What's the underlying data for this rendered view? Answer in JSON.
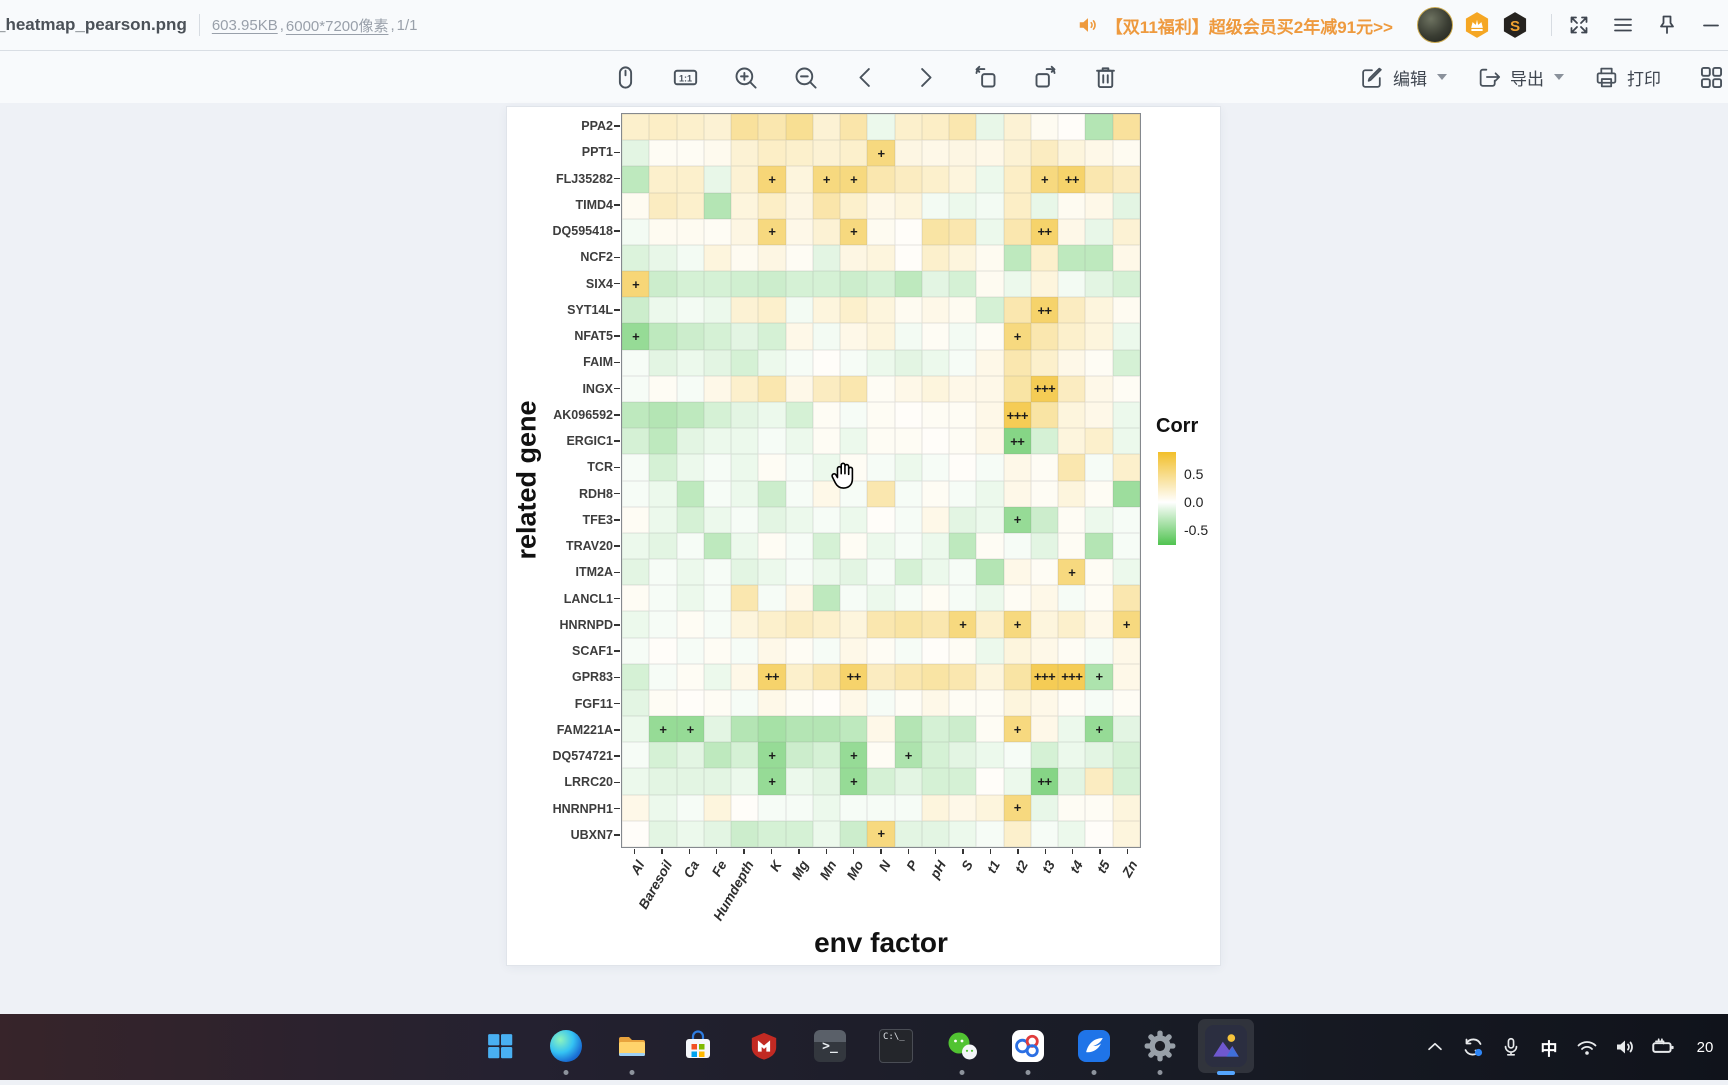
{
  "window": {
    "title": "_heatmap_pearson.png",
    "file_info": {
      "size": "603.95KB",
      "sep1": ",",
      "dimensions": "6000*7200像素",
      "sep2": ", ",
      "page": "1/1"
    },
    "promo": "【双11福利】超级会员买2年减91元>>",
    "svip_badge_label": "S",
    "header_icons": [
      "speaker-icon",
      "avatar",
      "vip-crown-badge",
      "svip-badge",
      "fullscreen-icon",
      "menu-icon",
      "pin-icon",
      "minimize-icon"
    ]
  },
  "toolbar": {
    "one_to_one": "1:1",
    "edit_label": "编辑",
    "export_label": "导出",
    "print_label": "打印",
    "icon_names": [
      "drag-tool",
      "actual-size",
      "zoom-in",
      "zoom-out",
      "previous-image",
      "next-image",
      "rotate-left",
      "rotate-right",
      "delete-image",
      "edit",
      "export",
      "print",
      "more-apps"
    ]
  },
  "chart_data": {
    "type": "heatmap",
    "xlabel": "env factor",
    "ylabel": "related gene",
    "legend_title": "Corr",
    "legend_ticks": [
      "0.5",
      "0.0",
      "-0.5"
    ],
    "colors": {
      "positive_max": "#f2bf2a",
      "negative_max": "#50c350",
      "mid": "#ffffff"
    },
    "value_scale_max": 0.75,
    "x_categories": [
      "Al",
      "Baresoil",
      "Ca",
      "Fe",
      "Humdepth",
      "K",
      "Mg",
      "Mn",
      "Mo",
      "N",
      "P",
      "pH",
      "S",
      "t1",
      "t2",
      "t3",
      "t4",
      "t5",
      "Zn"
    ],
    "y_categories": [
      "PPA2",
      "PPT1",
      "FLJ35282",
      "TIMD4",
      "DQ595418",
      "NCF2",
      "SIX4",
      "SYT14L",
      "NFAT5",
      "FAIM",
      "INGX",
      "AK096592",
      "ERGIC1",
      "TCR",
      "RDH8",
      "TFE3",
      "TRAV20",
      "ITM2A",
      "LANCL1",
      "HNRNPD",
      "SCAF1",
      "GPR83",
      "FGF11",
      "FAM221A",
      "DQ574721",
      "LRRC20",
      "HNRNPH1",
      "UBXN7"
    ],
    "values": [
      [
        0.18,
        0.2,
        0.18,
        0.15,
        0.35,
        0.28,
        0.38,
        0.15,
        0.3,
        -0.08,
        0.18,
        0.2,
        0.28,
        -0.1,
        0.15,
        0.05,
        0.02,
        -0.32,
        0.35
      ],
      [
        -0.12,
        0.04,
        0.04,
        0.06,
        0.15,
        0.2,
        0.18,
        0.15,
        0.18,
        0.45,
        0.1,
        0.08,
        0.1,
        0.08,
        0.15,
        0.22,
        0.12,
        0.08,
        0.05
      ],
      [
        -0.28,
        0.18,
        0.18,
        -0.1,
        0.15,
        0.48,
        0.12,
        0.45,
        0.45,
        0.28,
        0.22,
        0.18,
        0.12,
        -0.08,
        0.2,
        0.45,
        0.52,
        0.28,
        0.22
      ],
      [
        0.05,
        0.22,
        0.18,
        -0.32,
        0.12,
        0.2,
        0.1,
        0.3,
        0.18,
        0.08,
        0.12,
        -0.05,
        -0.08,
        -0.05,
        0.2,
        -0.1,
        0.05,
        0.08,
        -0.12
      ],
      [
        -0.05,
        0.05,
        0.05,
        0.04,
        0.1,
        0.45,
        0.08,
        0.15,
        0.45,
        0.05,
        0.02,
        0.32,
        0.28,
        -0.08,
        0.28,
        0.52,
        0.08,
        -0.1,
        0.15
      ],
      [
        -0.15,
        -0.1,
        -0.05,
        0.12,
        0.05,
        0.1,
        0.04,
        -0.12,
        0.1,
        0.12,
        0.02,
        0.18,
        0.12,
        0.05,
        -0.28,
        0.18,
        -0.28,
        -0.28,
        0.08
      ],
      [
        0.48,
        -0.22,
        -0.18,
        -0.18,
        -0.2,
        -0.22,
        -0.18,
        -0.18,
        -0.22,
        -0.18,
        -0.28,
        -0.12,
        -0.18,
        0.05,
        -0.08,
        0.12,
        -0.05,
        -0.12,
        -0.18
      ],
      [
        -0.22,
        -0.08,
        -0.05,
        -0.08,
        0.15,
        0.18,
        -0.05,
        0.12,
        0.18,
        0.12,
        0.05,
        0.08,
        0.05,
        -0.18,
        0.28,
        0.52,
        0.22,
        0.12,
        0.05
      ],
      [
        -0.45,
        -0.28,
        -0.22,
        -0.18,
        -0.12,
        -0.18,
        0.08,
        -0.05,
        0.08,
        0.12,
        -0.05,
        0.04,
        -0.05,
        0.04,
        0.45,
        0.28,
        0.18,
        0.12,
        -0.08
      ],
      [
        -0.04,
        -0.12,
        -0.08,
        -0.12,
        -0.18,
        -0.08,
        -0.04,
        0.02,
        -0.04,
        -0.08,
        -0.12,
        -0.08,
        -0.04,
        0.08,
        0.28,
        0.18,
        0.08,
        0.04,
        -0.18
      ],
      [
        -0.04,
        0.04,
        -0.04,
        0.08,
        0.18,
        0.28,
        0.08,
        0.22,
        0.28,
        0.04,
        0.08,
        0.12,
        0.08,
        0.08,
        0.32,
        0.6,
        0.22,
        0.08,
        0.04
      ],
      [
        -0.28,
        -0.32,
        -0.28,
        -0.18,
        -0.12,
        -0.08,
        -0.18,
        0.04,
        -0.04,
        0.04,
        0.02,
        0.04,
        0.04,
        0.08,
        0.6,
        0.32,
        0.12,
        0.08,
        -0.08
      ],
      [
        -0.18,
        -0.28,
        -0.12,
        -0.08,
        -0.08,
        -0.04,
        -0.08,
        0.04,
        -0.08,
        0.04,
        0.04,
        0.02,
        0.04,
        0.08,
        -0.52,
        -0.18,
        0.12,
        0.18,
        -0.08
      ],
      [
        -0.04,
        -0.18,
        -0.08,
        -0.04,
        -0.08,
        0.04,
        -0.04,
        -0.08,
        0.04,
        -0.04,
        -0.08,
        -0.04,
        0.02,
        -0.04,
        0.08,
        0.04,
        0.28,
        -0.04,
        0.18
      ],
      [
        -0.04,
        -0.08,
        -0.28,
        -0.04,
        -0.08,
        -0.22,
        -0.04,
        0.08,
        -0.04,
        0.28,
        -0.04,
        0.04,
        -0.04,
        -0.08,
        0.08,
        0.04,
        0.12,
        0.04,
        -0.42
      ],
      [
        0.04,
        -0.08,
        -0.18,
        -0.08,
        -0.04,
        -0.12,
        -0.08,
        -0.04,
        -0.08,
        0.02,
        -0.04,
        0.08,
        -0.12,
        -0.08,
        -0.45,
        -0.22,
        0.04,
        -0.08,
        -0.04
      ],
      [
        -0.08,
        -0.12,
        -0.04,
        -0.28,
        -0.08,
        0.04,
        -0.04,
        -0.18,
        0.04,
        -0.08,
        -0.04,
        -0.08,
        -0.28,
        0.04,
        -0.04,
        -0.12,
        0.04,
        -0.32,
        -0.04
      ],
      [
        -0.12,
        -0.04,
        -0.08,
        -0.04,
        -0.12,
        -0.08,
        -0.04,
        -0.08,
        -0.12,
        -0.04,
        -0.18,
        -0.08,
        -0.04,
        -0.32,
        0.08,
        0.04,
        0.45,
        0.04,
        -0.08
      ],
      [
        0.04,
        -0.04,
        -0.08,
        -0.04,
        0.28,
        -0.04,
        0.08,
        -0.28,
        -0.04,
        -0.08,
        -0.04,
        0.04,
        -0.04,
        -0.08,
        0.04,
        0.08,
        -0.04,
        0.04,
        0.28
      ],
      [
        -0.08,
        -0.04,
        0.04,
        -0.04,
        0.12,
        0.18,
        0.22,
        0.18,
        0.12,
        0.28,
        0.32,
        0.28,
        0.45,
        0.18,
        0.45,
        0.12,
        0.18,
        0.08,
        0.45
      ],
      [
        -0.04,
        0.02,
        -0.04,
        0.04,
        -0.04,
        0.08,
        0.04,
        -0.04,
        0.08,
        0.04,
        -0.04,
        0.02,
        0.04,
        -0.08,
        0.12,
        0.08,
        0.04,
        -0.04,
        0.08
      ],
      [
        -0.18,
        -0.04,
        0.04,
        -0.08,
        0.08,
        0.52,
        0.18,
        0.28,
        0.52,
        0.22,
        0.28,
        0.32,
        0.28,
        0.12,
        0.32,
        0.6,
        0.6,
        -0.35,
        0.08
      ],
      [
        -0.12,
        0.04,
        0.02,
        0.04,
        -0.04,
        0.08,
        0.04,
        0.02,
        0.08,
        -0.04,
        0.04,
        0.08,
        0.04,
        0.04,
        0.12,
        0.08,
        0.04,
        -0.04,
        0.04
      ],
      [
        -0.08,
        -0.45,
        -0.45,
        -0.12,
        -0.32,
        -0.38,
        -0.32,
        -0.32,
        -0.28,
        0.08,
        -0.32,
        -0.18,
        -0.22,
        0.04,
        0.45,
        0.08,
        -0.08,
        -0.45,
        -0.12
      ],
      [
        -0.04,
        -0.18,
        -0.12,
        -0.28,
        -0.18,
        -0.45,
        -0.22,
        -0.18,
        -0.45,
        0.04,
        -0.35,
        -0.18,
        -0.12,
        -0.08,
        -0.04,
        -0.18,
        -0.08,
        -0.12,
        -0.18
      ],
      [
        -0.08,
        -0.12,
        -0.12,
        -0.12,
        -0.08,
        -0.45,
        -0.08,
        -0.12,
        -0.45,
        -0.18,
        -0.12,
        -0.18,
        -0.18,
        0.02,
        -0.08,
        -0.52,
        -0.12,
        0.22,
        -0.18
      ],
      [
        0.08,
        -0.08,
        -0.04,
        0.12,
        0.02,
        -0.04,
        -0.04,
        -0.08,
        -0.04,
        -0.04,
        -0.04,
        0.12,
        0.08,
        0.12,
        0.45,
        -0.1,
        0.04,
        0.04,
        0.12
      ],
      [
        0.02,
        -0.12,
        -0.08,
        -0.12,
        -0.22,
        -0.18,
        -0.18,
        -0.08,
        -0.22,
        0.45,
        -0.12,
        -0.12,
        -0.08,
        -0.04,
        0.18,
        -0.04,
        -0.08,
        0.02,
        0.12
      ]
    ],
    "marks": {
      "1": {
        "9": "+"
      },
      "2": {
        "5": "+",
        "7": "+",
        "8": "+",
        "15": "+",
        "16": "++"
      },
      "4": {
        "5": "+",
        "8": "+",
        "15": "++"
      },
      "6": {
        "0": "+"
      },
      "7": {
        "15": "++"
      },
      "8": {
        "0": "+",
        "14": "+"
      },
      "10": {
        "15": "+++"
      },
      "11": {
        "14": "+++"
      },
      "12": {
        "14": "++"
      },
      "15": {
        "14": "+"
      },
      "17": {
        "16": "+"
      },
      "19": {
        "12": "+",
        "14": "+",
        "18": "+"
      },
      "21": {
        "5": "++",
        "8": "++",
        "15": "+++",
        "16": "+++",
        "17": "+"
      },
      "23": {
        "1": "+",
        "2": "+",
        "14": "+",
        "17": "+"
      },
      "24": {
        "5": "+",
        "8": "+",
        "10": "+"
      },
      "25": {
        "5": "+",
        "8": "+",
        "15": "++"
      },
      "26": {
        "14": "+"
      },
      "27": {
        "9": "+"
      }
    }
  },
  "taskbar": {
    "apps": [
      "start",
      "edge",
      "file-explorer",
      "microsoft-store",
      "mcafee",
      "windows-terminal",
      "cmd",
      "wechat",
      "rings-app",
      "wing-app",
      "settings",
      "image-viewer"
    ],
    "tray_icons": [
      "chevron-up",
      "sync",
      "microphone",
      "ime",
      "wifi",
      "volume",
      "battery",
      "clock"
    ],
    "ime": "中",
    "clock": "20"
  }
}
